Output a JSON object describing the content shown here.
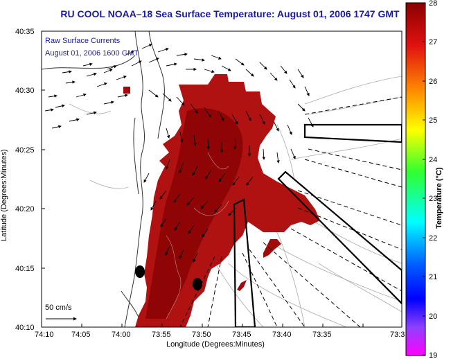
{
  "title": "RU COOL  NOAA–18  Sea Surface Temperature:  August 01, 2006 1747 GMT",
  "legend_lines": [
    "Raw Surface Currents",
    "August 01, 2006 1600 GMT"
  ],
  "scale_label": "50 cm/s",
  "x_axis": {
    "label": "Longitude (Degrees:Minutes)",
    "ticks": [
      "74:10",
      "74:05",
      "74:00",
      "73:55",
      "73:50",
      "73:45",
      "73:40",
      "73:35",
      "73:3"
    ]
  },
  "y_axis": {
    "label": "Latitude (Degrees:Minutes)",
    "ticks": [
      "40:35",
      "40:30",
      "40:25",
      "40:20",
      "40:15",
      "40:10"
    ]
  },
  "colorbar": {
    "label": "Temperature (°C)",
    "ticks": [
      "28",
      "27",
      "26",
      "25",
      "24",
      "23",
      "22",
      "21",
      "20",
      "19"
    ],
    "min": 19,
    "max": 28
  },
  "colors": {
    "sst_warm": "#9c0707",
    "sst_mid": "#b41414",
    "sst_edge": "#cc2020",
    "title_blue": "#1a1aa0"
  }
}
